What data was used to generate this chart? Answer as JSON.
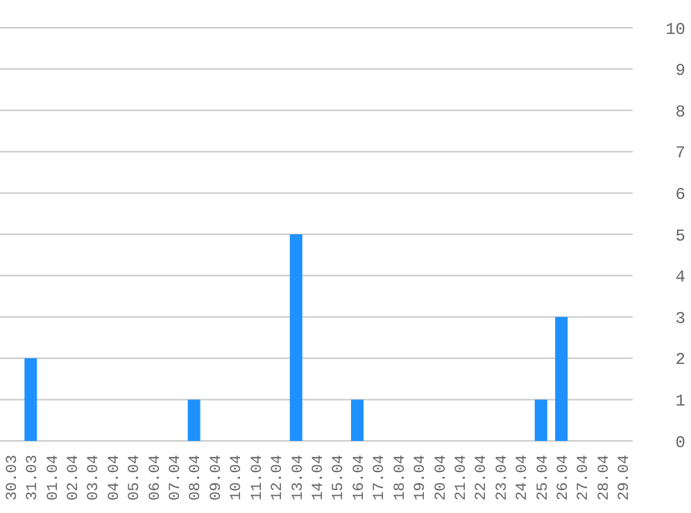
{
  "chart_data": {
    "type": "bar",
    "categories": [
      "30.03",
      "31.03",
      "01.04",
      "02.04",
      "03.04",
      "04.04",
      "05.04",
      "06.04",
      "07.04",
      "08.04",
      "09.04",
      "10.04",
      "11.04",
      "12.04",
      "13.04",
      "14.04",
      "15.04",
      "16.04",
      "17.04",
      "18.04",
      "19.04",
      "20.04",
      "21.04",
      "22.04",
      "23.04",
      "24.04",
      "25.04",
      "26.04",
      "27.04",
      "28.04",
      "29.04"
    ],
    "values": [
      0,
      2,
      0,
      0,
      0,
      0,
      0,
      0,
      0,
      1,
      0,
      0,
      0,
      0,
      5,
      0,
      0,
      1,
      0,
      0,
      0,
      0,
      0,
      0,
      0,
      0,
      1,
      3,
      0,
      0,
      0
    ],
    "color": "#1e90ff",
    "ylim": [
      0,
      10
    ],
    "yticks": [
      0,
      1,
      2,
      3,
      4,
      5,
      6,
      7,
      8,
      9,
      10
    ],
    "grid": "y",
    "legend": false
  }
}
